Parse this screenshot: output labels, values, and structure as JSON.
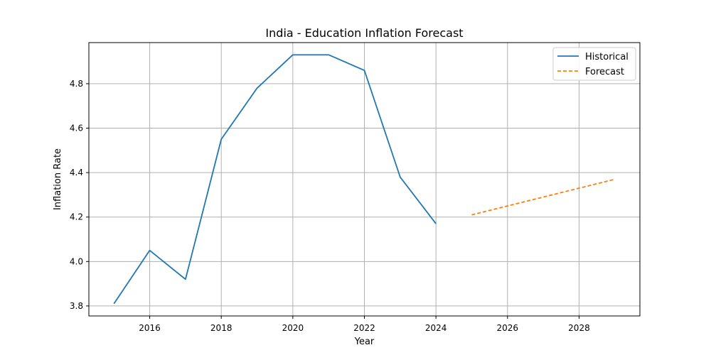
{
  "chart_data": {
    "type": "line",
    "title": "India - Education Inflation Forecast",
    "xlabel": "Year",
    "ylabel": "Inflation Rate",
    "xlim": [
      2014.3,
      2029.7
    ],
    "ylim": [
      3.755,
      4.985
    ],
    "xticks": [
      2016,
      2018,
      2020,
      2022,
      2024,
      2026,
      2028
    ],
    "yticks": [
      3.8,
      4.0,
      4.2,
      4.4,
      4.6,
      4.8
    ],
    "grid": true,
    "legend_position": "top-right",
    "series": [
      {
        "name": "Historical",
        "style": "solid",
        "color": "#1f77b4",
        "x": [
          2015,
          2016,
          2017,
          2018,
          2019,
          2020,
          2021,
          2022,
          2023,
          2024
        ],
        "y": [
          3.81,
          4.05,
          3.92,
          4.55,
          4.78,
          4.93,
          4.93,
          4.86,
          4.38,
          4.17
        ]
      },
      {
        "name": "Forecast",
        "style": "dashed",
        "color": "#ff7f0e",
        "x": [
          2025,
          2026,
          2027,
          2028,
          2029
        ],
        "y": [
          4.21,
          4.25,
          4.29,
          4.33,
          4.37
        ]
      }
    ]
  }
}
